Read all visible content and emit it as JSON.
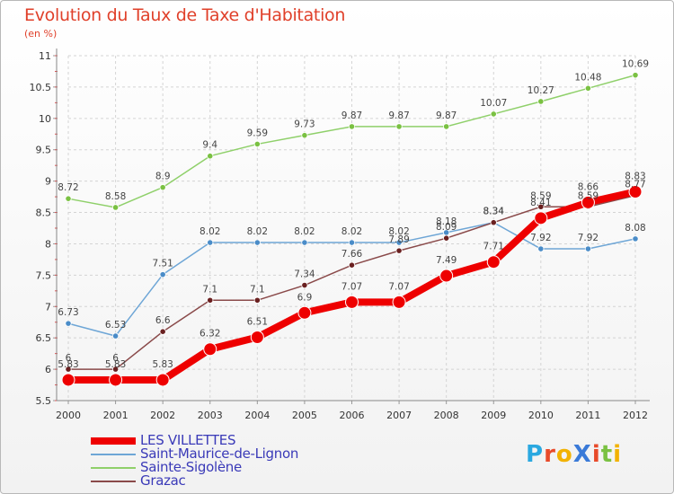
{
  "title": "Evolution du Taux de Taxe d'Habitation",
  "subtitle": "(en %)",
  "logo": {
    "text": "ProXiti",
    "letter_colors": [
      "#2aa8e0",
      "#e84a2a",
      "#f2b200",
      "#3a7ad8",
      "#e84a2a",
      "#7ac142",
      "#f2b200"
    ]
  },
  "chart_data": {
    "type": "line",
    "x": [
      "2000",
      "2001",
      "2002",
      "2003",
      "2004",
      "2005",
      "2006",
      "2007",
      "2008",
      "2009",
      "2010",
      "2011",
      "2012"
    ],
    "ylim": [
      5.5,
      11
    ],
    "yticks": [
      5.5,
      6,
      6.5,
      7,
      7.5,
      8,
      8.5,
      9,
      9.5,
      10,
      10.5,
      11
    ],
    "ytick_labels": [
      "5.5",
      "6",
      "6.5",
      "7",
      "7.5",
      "8",
      "8.5",
      "9",
      "9.5",
      "10",
      "10.5",
      "11"
    ],
    "grid": true,
    "legend_position": "bottom-left",
    "series": [
      {
        "name": "Sainte-Sigolène",
        "color": "#8fd06a",
        "marker": "#7ac142",
        "values": [
          8.72,
          8.58,
          8.9,
          9.4,
          9.59,
          9.73,
          9.87,
          9.87,
          9.87,
          10.07,
          10.27,
          10.48,
          10.69
        ],
        "labels": [
          "8.72",
          "8.58",
          "8.9",
          "9.4",
          "9.59",
          "9.73",
          "9.87",
          "9.87",
          "9.87",
          "10.07",
          "10.27",
          "10.48",
          "10.69"
        ]
      },
      {
        "name": "Saint-Maurice-de-Lignon",
        "color": "#6ea6d6",
        "marker": "#4a8cc8",
        "values": [
          6.73,
          6.53,
          7.51,
          8.02,
          8.02,
          8.02,
          8.02,
          8.02,
          8.18,
          8.34,
          7.92,
          7.92,
          8.08
        ],
        "labels": [
          "6.73",
          "6.53",
          "7.51",
          "8.02",
          "8.02",
          "8.02",
          "8.02",
          "8.02",
          "8.18",
          "8.34",
          "7.92",
          "7.92",
          "8.08"
        ]
      },
      {
        "name": "Grazac",
        "color": "#8a4a4a",
        "marker": "#6a2020",
        "values": [
          6,
          6,
          6.6,
          7.1,
          7.1,
          7.34,
          7.66,
          7.89,
          8.09,
          8.34,
          8.59,
          8.59,
          8.77
        ],
        "labels": [
          "6",
          "6",
          "6.6",
          "7.1",
          "7.1",
          "7.34",
          "7.66",
          "7.89",
          "8.09",
          "8.34",
          "8.59",
          "8.59",
          "8.77"
        ]
      },
      {
        "name": "LES VILLETTES",
        "color": "#ee0000",
        "marker": "#ee0000",
        "values": [
          5.83,
          5.83,
          5.83,
          6.32,
          6.51,
          6.9,
          7.07,
          7.07,
          7.49,
          7.71,
          8.41,
          8.66,
          8.83
        ],
        "labels": [
          "5.83",
          "5.83",
          "5.83",
          "6.32",
          "6.51",
          "6.9",
          "7.07",
          "7.07",
          "7.49",
          "7.71",
          "8.41",
          "8.66",
          "8.83"
        ]
      }
    ],
    "legend_order": [
      "LES VILLETTES",
      "Saint-Maurice-de-Lignon",
      "Sainte-Sigolène",
      "Grazac"
    ]
  }
}
